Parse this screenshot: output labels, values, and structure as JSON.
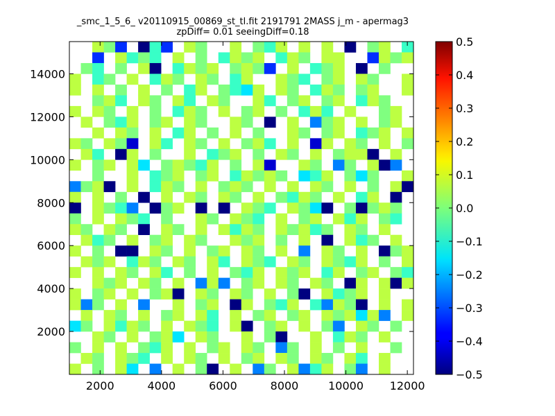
{
  "chart_data": {
    "type": "heatmap",
    "title": "_smc_1_5_6_ v20110915_00869_st_tl.fit 2191791 2MASS j_m - apermag3",
    "subtitle": "zpDiff= 0.01 seeingDiff=0.18",
    "xlabel": "",
    "ylabel": "",
    "xlim": [
      1000,
      12200
    ],
    "ylim": [
      0,
      15500
    ],
    "x_ticks": [
      "2000",
      "4000",
      "6000",
      "8000",
      "10000",
      "12000"
    ],
    "y_ticks": [
      "2000",
      "4000",
      "6000",
      "8000",
      "10000",
      "12000",
      "14000"
    ],
    "colorbar": {
      "colormap": "jet",
      "range": [
        -0.5,
        0.5
      ],
      "ticks": [
        "0.5",
        "0.4",
        "0.3",
        "0.2",
        "0.1",
        "0.0",
        "−0.1",
        "−0.2",
        "−0.3",
        "−0.4",
        "−0.5"
      ]
    },
    "grid": {
      "columns": 30,
      "rows": 31,
      "x_start": 1000,
      "cell_width": 373,
      "y_start": 0,
      "cell_height": 500,
      "row_order": "top-to-bottom",
      "cells": [
        "..+^*.O:*.+^..+.^:+.+.+.O.^+.:",
        "..*.+:^:.+.^.:+^+.:+^.++..*+^+",
        ".^:.^.+O.:+^+.^+^*.+.:^+.O.^..",
        "+.:^.+.:+^.+^.:+..+^:.^+.+^..+",
        "+.+.^.+.^.:+.^:=+.+^.:+^.^+..+",
        "..^+:.+^.+:.+^..+:.^+.^+.:+^..",
        "+.+^.+.^.:+^.+.^+.^.:+:.+..^+.",
        ".+.^:+.^+.+^..+^.O.+.-^+.+.^+.",
        "..+.+^.+.:+.^.+.^..+^.^+.:^+.+",
        "+^.+^#.+:.+^.+.^+:.+.#+.+^.+.^",
        ".+:.O+.^..+.:^+.^.+^.+.^++O.+.",
        "+.^+.+=.^+^:+.^.+#..+^.-^.+O-.",
        "..^..+.:^+.^+.:+^+^.=:+.^=^..+",
        "-^+O.+.:+^.+.^+^.+.+.+^.+.^.+O",
        "+.+.^.O.+.+^.+^.+.^:+^.+.:+.O.",
        "O.+^:-.O^+.O.O.+^:.+^=O.^O^+^.",
        "^.+.+^:.^..+^.+^:.+.^+.+:+.^:.",
        "+^.+^.O.+^.+.+:+^.+^+:^.+^.+..",
        ".+:^.+.^+.+^..+^+.^.+.O.+:^.+.",
        "+.^.OO.+^.+.^+.+^.+.-.+^.+.O^+",
        ".+^+.:+^.+^.+:.+^:.+^.+^:+.^.+",
        "+.+.+^.+:.^.+.^:+.+^+.:+.^+.^:",
        "..+^+.+^.+.-+-.^+.+^.+^.O+.+O+",
        "+.^+.+.^+O.+^.+^.+.^O.+:^+.+..",
        "+-^.+.-..+.^+.O+.^:+.:-+^O.+.+",
        ".+.+^.+.^+.+:.+.^+.^+.+^+=+-.+",
        "=^.+:+^.+.+^:.+O.^+.+.^-.+^.^.",
        "..+^.+.^+=.+^..+.^O..+.:+^.+..",
        "^.+.+.^:+.+.^+.+^.-^.+.^.+..^.",
        ".+^.+^:.+.+^.+.^+.+^.+^.+:.+..",
        "+.^.+=.-.+.^O.+.-^.+-:+.^-.+.."
      ],
      "legend": {
        ".": null,
        "O": -0.5,
        "#": -0.42,
        "*": -0.33,
        "-": -0.25,
        "=": -0.15,
        ":": -0.07,
        "^": 0.0,
        "+": 0.06
      }
    }
  }
}
